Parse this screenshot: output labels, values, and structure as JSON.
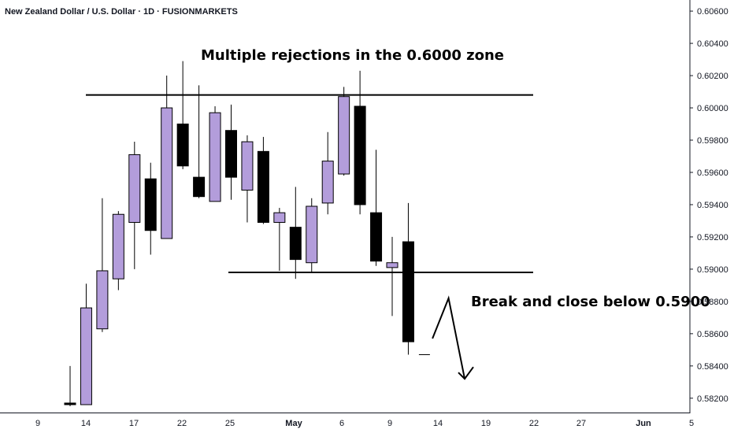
{
  "header": {
    "title": "New Zealand Dollar / U.S. Dollar · 1D · FUSIONMARKETS"
  },
  "annotations": {
    "top": "Multiple rejections in the 0.6000 zone",
    "right": "Break and close below 0.5900"
  },
  "colors": {
    "bull": "#b39ddb",
    "bear": "#000000",
    "wick": "#000000",
    "axis": "#131722"
  },
  "chart_data": {
    "type": "candlestick",
    "ylim": [
      0.5816,
      0.6062
    ],
    "y_ticks": [
      "0.60600",
      "0.60400",
      "0.60200",
      "0.60000",
      "0.59800",
      "0.59600",
      "0.59400",
      "0.59200",
      "0.59000",
      "0.58800",
      "0.58600",
      "0.58400",
      "0.58200"
    ],
    "x_ticks": [
      {
        "label": "9",
        "bold": false
      },
      {
        "label": "14",
        "bold": false
      },
      {
        "label": "17",
        "bold": false
      },
      {
        "label": "22",
        "bold": false
      },
      {
        "label": "25",
        "bold": false
      },
      {
        "label": "May",
        "bold": true
      },
      {
        "label": "6",
        "bold": false
      },
      {
        "label": "9",
        "bold": false
      },
      {
        "label": "14",
        "bold": false
      },
      {
        "label": "19",
        "bold": false
      },
      {
        "label": "22",
        "bold": false
      },
      {
        "label": "27",
        "bold": false
      },
      {
        "label": "Jun",
        "bold": true
      },
      {
        "label": "5",
        "bold": false
      }
    ],
    "candles": [
      {
        "o": 0.5817,
        "h": 0.584,
        "l": 0.5815,
        "c": 0.5816
      },
      {
        "o": 0.5816,
        "h": 0.5891,
        "l": 0.5816,
        "c": 0.5876
      },
      {
        "o": 0.5863,
        "h": 0.5944,
        "l": 0.5861,
        "c": 0.5899
      },
      {
        "o": 0.5894,
        "h": 0.5936,
        "l": 0.5887,
        "c": 0.5934
      },
      {
        "o": 0.5929,
        "h": 0.5979,
        "l": 0.59,
        "c": 0.5971
      },
      {
        "o": 0.5956,
        "h": 0.5966,
        "l": 0.5909,
        "c": 0.5924
      },
      {
        "o": 0.5919,
        "h": 0.602,
        "l": 0.5919,
        "c": 0.6
      },
      {
        "o": 0.599,
        "h": 0.6029,
        "l": 0.5962,
        "c": 0.5964
      },
      {
        "o": 0.5957,
        "h": 0.6014,
        "l": 0.5944,
        "c": 0.5945
      },
      {
        "o": 0.5942,
        "h": 0.6001,
        "l": 0.5942,
        "c": 0.5997
      },
      {
        "o": 0.5986,
        "h": 0.6002,
        "l": 0.5943,
        "c": 0.5957
      },
      {
        "o": 0.5949,
        "h": 0.5983,
        "l": 0.5929,
        "c": 0.5979
      },
      {
        "o": 0.5973,
        "h": 0.5982,
        "l": 0.5928,
        "c": 0.5929
      },
      {
        "o": 0.5929,
        "h": 0.5938,
        "l": 0.5899,
        "c": 0.5935
      },
      {
        "o": 0.5926,
        "h": 0.5951,
        "l": 0.5894,
        "c": 0.5906
      },
      {
        "o": 0.5904,
        "h": 0.5944,
        "l": 0.5898,
        "c": 0.5939
      },
      {
        "o": 0.5941,
        "h": 0.5985,
        "l": 0.5934,
        "c": 0.5967
      },
      {
        "o": 0.5959,
        "h": 0.6013,
        "l": 0.5958,
        "c": 0.6007
      },
      {
        "o": 0.6001,
        "h": 0.6023,
        "l": 0.5934,
        "c": 0.594
      },
      {
        "o": 0.5935,
        "h": 0.5974,
        "l": 0.5902,
        "c": 0.5905
      },
      {
        "o": 0.5901,
        "h": 0.592,
        "l": 0.5871,
        "c": 0.5904
      },
      {
        "o": 0.5917,
        "h": 0.5941,
        "l": 0.5847,
        "c": 0.5855
      },
      {
        "o": 0.5847,
        "h": 0.5847,
        "l": 0.5847,
        "c": 0.5847
      }
    ],
    "levels": [
      0.6008,
      0.5898
    ],
    "projection": [
      {
        "bar": 22.5,
        "v": 0.5857
      },
      {
        "bar": 23.5,
        "v": 0.5882
      },
      {
        "bar": 24.5,
        "v": 0.5832
      }
    ]
  }
}
